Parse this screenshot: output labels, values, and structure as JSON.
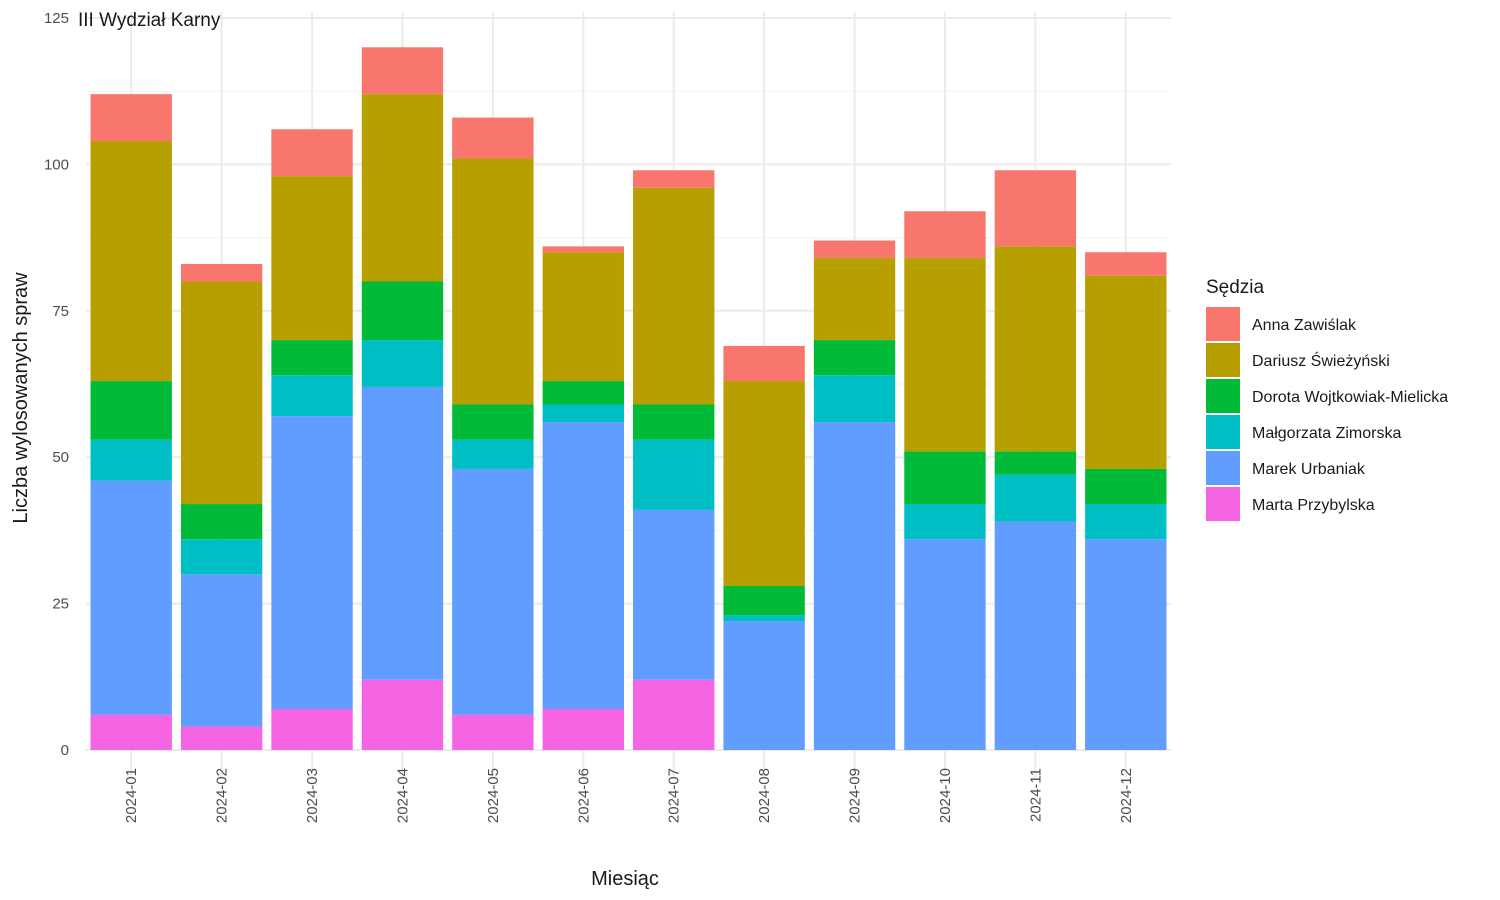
{
  "chart_data": {
    "type": "bar",
    "stacked": true,
    "title": "III Wydział Karny",
    "xlabel": "Miesiąc",
    "ylabel": "Liczba wylosowanych spraw",
    "ylim": [
      0,
      125
    ],
    "yticks": [
      0,
      25,
      50,
      75,
      100,
      125
    ],
    "grid": true,
    "legend_title": "Sędzia",
    "legend_position": "right",
    "categories": [
      "2024-01",
      "2024-02",
      "2024-03",
      "2024-04",
      "2024-05",
      "2024-06",
      "2024-07",
      "2024-08",
      "2024-09",
      "2024-10",
      "2024-11",
      "2024-12"
    ],
    "series": [
      {
        "name": "Anna Zawiślak",
        "color": "#F8766D",
        "values": [
          8,
          3,
          8,
          8,
          7,
          1,
          3,
          6,
          3,
          8,
          13,
          4
        ]
      },
      {
        "name": "Dariusz Świeżyński",
        "color": "#B79F00",
        "values": [
          41,
          38,
          28,
          32,
          42,
          22,
          37,
          35,
          14,
          33,
          35,
          33
        ]
      },
      {
        "name": "Dorota Wojtkowiak-Mielicka",
        "color": "#00BA38",
        "values": [
          10,
          6,
          6,
          10,
          6,
          4,
          6,
          5,
          6,
          9,
          4,
          6
        ]
      },
      {
        "name": "Małgorzata Zimorska",
        "color": "#00BFC4",
        "values": [
          7,
          6,
          7,
          8,
          5,
          3,
          12,
          1,
          8,
          6,
          8,
          6
        ]
      },
      {
        "name": "Marek Urbaniak",
        "color": "#619CFF",
        "values": [
          40,
          26,
          50,
          50,
          42,
          49,
          29,
          22,
          56,
          36,
          39,
          36
        ]
      },
      {
        "name": "Marta Przybylska",
        "color": "#F564E3",
        "values": [
          6,
          4,
          7,
          12,
          6,
          7,
          12,
          0,
          0,
          0,
          0,
          0
        ]
      }
    ]
  }
}
